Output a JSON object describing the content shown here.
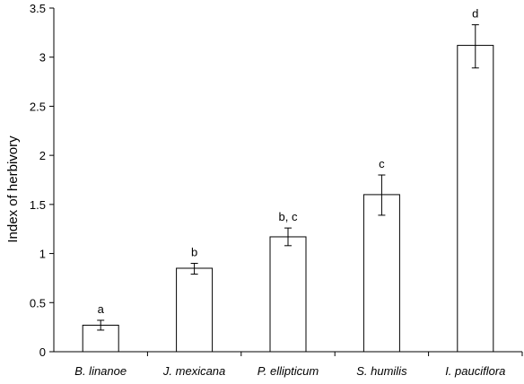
{
  "chart_data": {
    "type": "bar",
    "title": "",
    "xlabel": "",
    "ylabel": "Index of herbivory",
    "ylim": [
      0,
      3.5
    ],
    "yticks": [
      0,
      0.5,
      1,
      1.5,
      2,
      2.5,
      3,
      3.5
    ],
    "ytick_labels": [
      "0",
      "0.5",
      "1",
      "1.5",
      "2",
      "2.5",
      "3",
      "3.5"
    ],
    "grid": false,
    "legend": "none",
    "bar_fill": "#ffffff",
    "bar_stroke": "#000000",
    "categories": [
      "B. linanoe",
      "J. mexicana",
      "P. ellipticum",
      "S. humilis",
      "I. pauciflora"
    ],
    "values": [
      0.27,
      0.85,
      1.17,
      1.6,
      3.12
    ],
    "error_low": [
      0.22,
      0.79,
      1.08,
      1.39,
      2.89
    ],
    "error_high": [
      0.32,
      0.9,
      1.26,
      1.8,
      3.33
    ],
    "significance_labels": [
      "a",
      "b",
      "b, c",
      "c",
      "d"
    ]
  }
}
